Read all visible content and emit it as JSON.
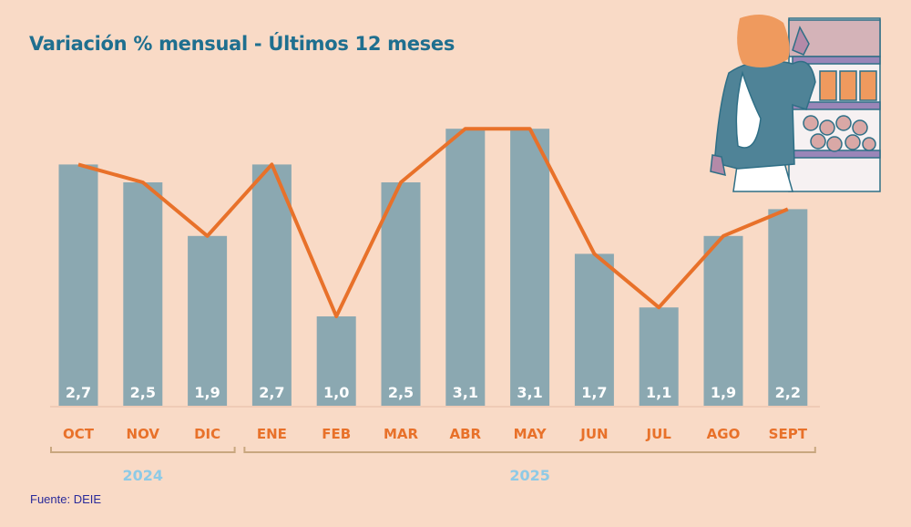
{
  "title": "Variación % mensual - Últimos 12 meses",
  "source": "Fuente: DEIE",
  "colors": {
    "bar": "#8ba8b1",
    "line": "#e8712a",
    "title": "#1f6f8f",
    "year": "#8ecae6"
  },
  "chart_data": {
    "type": "bar",
    "title": "Variación % mensual - Últimos 12 meses",
    "categories": [
      "OCT",
      "NOV",
      "DIC",
      "ENE",
      "FEB",
      "MAR",
      "ABR",
      "MAY",
      "JUN",
      "JUL",
      "AGO",
      "SEPT"
    ],
    "values": [
      2.7,
      2.5,
      1.9,
      2.7,
      1.0,
      2.5,
      3.1,
      3.1,
      1.7,
      1.1,
      1.9,
      2.2
    ],
    "value_labels": [
      "2,7",
      "2,5",
      "1,9",
      "2,7",
      "1,0",
      "2,5",
      "3,1",
      "3,1",
      "1,7",
      "1,1",
      "1,9",
      "2,2"
    ],
    "overlay_line": true,
    "groups": [
      {
        "label": "2024",
        "from": 0,
        "to": 2
      },
      {
        "label": "2025",
        "from": 3,
        "to": 11
      }
    ],
    "xlabel": "",
    "ylabel": "",
    "ylim": [
      0,
      3.5
    ],
    "grid": false
  }
}
